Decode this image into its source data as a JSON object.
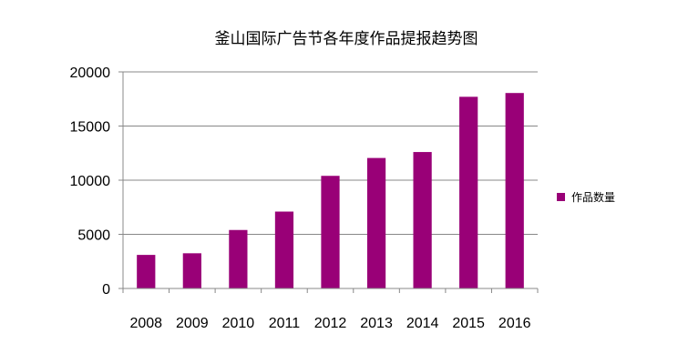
{
  "chart_data": {
    "type": "bar",
    "title": "釜山国际广告节各年度作品提报趋势图",
    "categories": [
      "2008",
      "2009",
      "2010",
      "2011",
      "2012",
      "2013",
      "2014",
      "2015",
      "2016"
    ],
    "series": [
      {
        "name": "作品数量",
        "values": [
          3100,
          3250,
          5400,
          7100,
          10400,
          12050,
          12600,
          17700,
          18050
        ]
      }
    ],
    "ylim": [
      0,
      20000
    ],
    "yticks": [
      "0",
      "5000",
      "10000",
      "15000",
      "20000"
    ],
    "grid": true,
    "legend_position": "right",
    "colors": {
      "bar": "#990077",
      "grid": "#888888",
      "axis": "#888888"
    }
  }
}
